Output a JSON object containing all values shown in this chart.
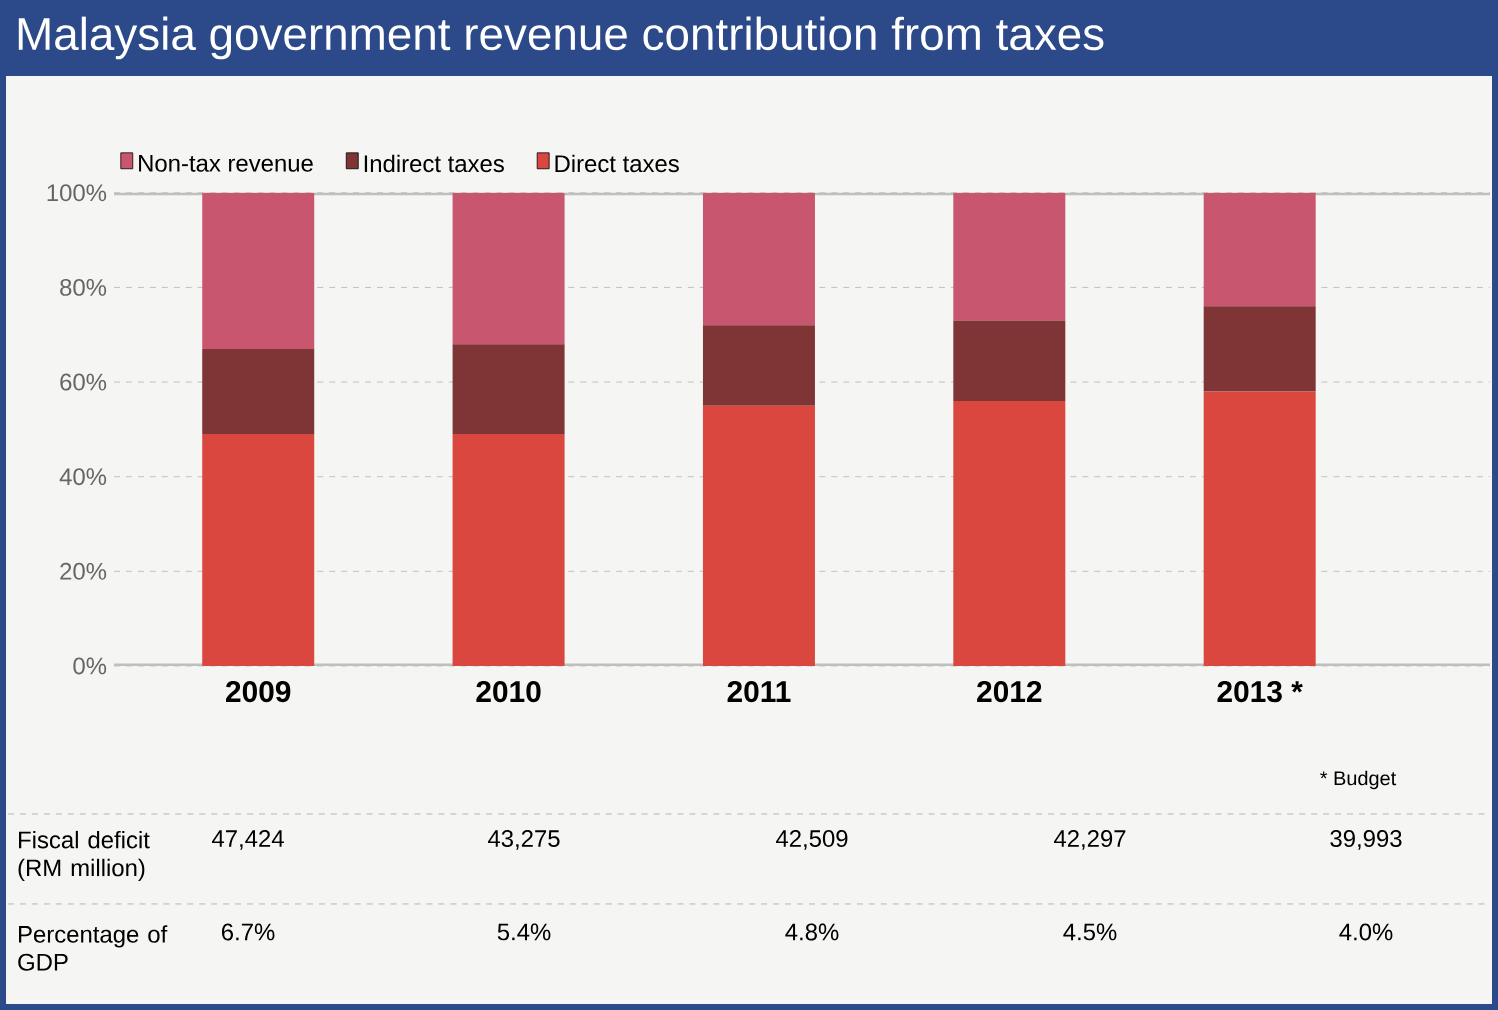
{
  "chart_data": {
    "type": "bar",
    "title": "Malaysia government revenue contribution from taxes",
    "categories": [
      "2009",
      "2010",
      "2011",
      "2012",
      "2013 *"
    ],
    "stacked": true,
    "series": [
      {
        "name": "Direct taxes",
        "color": "#d9473f",
        "values": [
          49,
          49,
          55,
          56,
          58
        ]
      },
      {
        "name": "Indirect taxes",
        "color": "#7f3535",
        "values": [
          18,
          19,
          17,
          17,
          18
        ]
      },
      {
        "name": "Non-tax revenue",
        "color": "#c9566f",
        "values": [
          33,
          32,
          28,
          27,
          24
        ]
      }
    ],
    "ylim": [
      0,
      100
    ],
    "yticks": [
      {
        "value": 0,
        "label": "0%"
      },
      {
        "value": 20,
        "label": "20%"
      },
      {
        "value": 40,
        "label": "40%"
      },
      {
        "value": 60,
        "label": "60%"
      },
      {
        "value": 80,
        "label": "80%"
      },
      {
        "value": 100,
        "label": "100%"
      }
    ],
    "grid": "y",
    "legend": "top left",
    "annotations": [
      "* Budget",
      "Fiscal deficit (RM million)",
      "47,424",
      "43,275",
      "42,509",
      "42,297",
      "39,993",
      "Percentage of GDP",
      "6.7%",
      "5.4%",
      "4.8%",
      "4.5%",
      "4.0%"
    ]
  }
}
